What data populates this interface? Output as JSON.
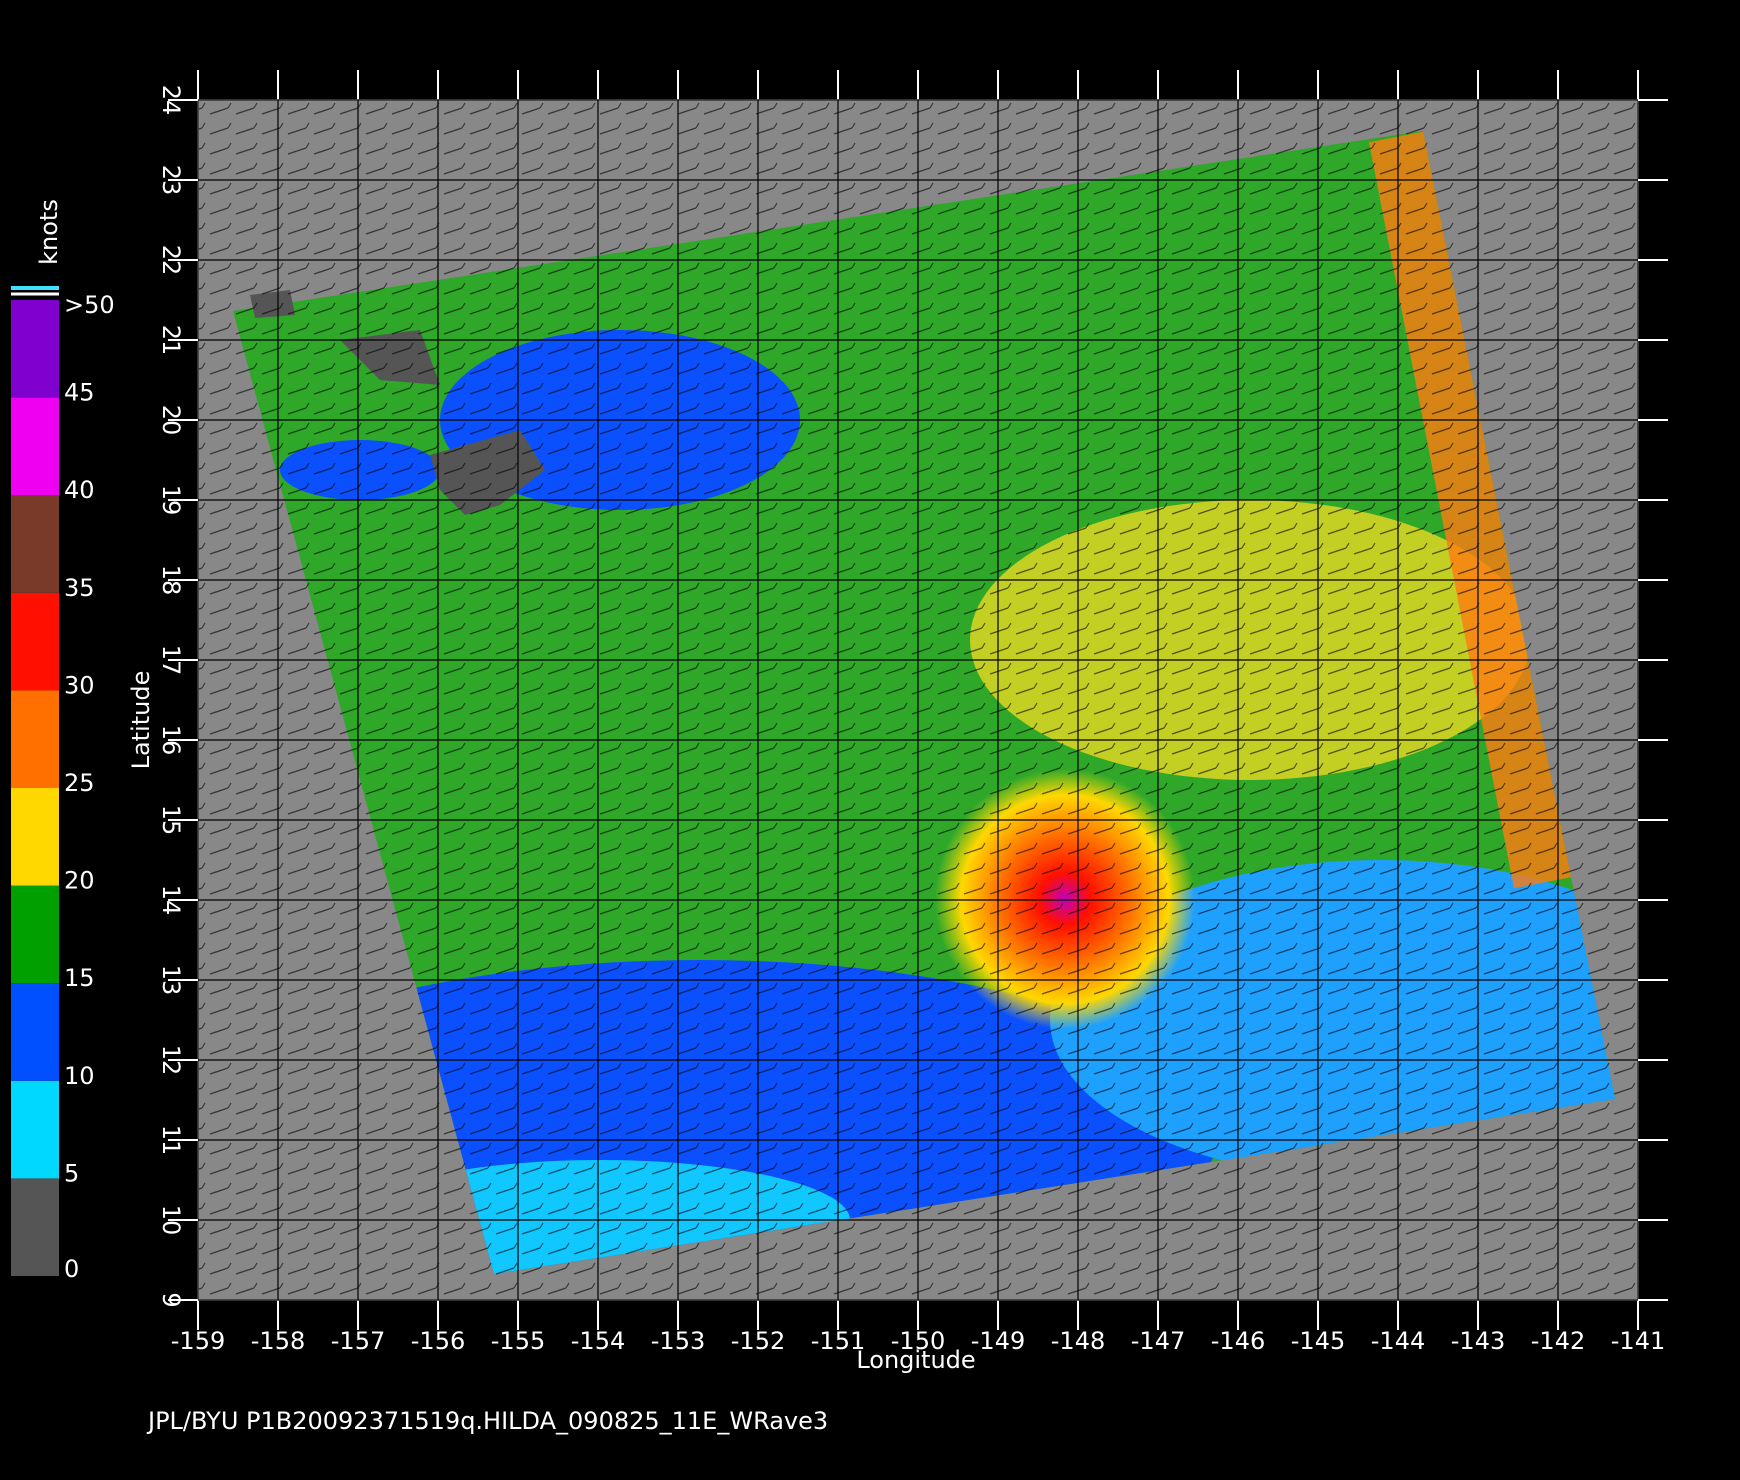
{
  "chart_data": {
    "type": "map",
    "x_label": "Longitude",
    "y_label": "Latitude",
    "xlim": [
      -159,
      -141
    ],
    "ylim": [
      9,
      24
    ],
    "xticks": [
      -159,
      -158,
      -157,
      -156,
      -155,
      -154,
      -153,
      -152,
      -151,
      -150,
      -149,
      -148,
      -147,
      -146,
      -145,
      -144,
      -143,
      -142,
      -141
    ],
    "yticks": [
      9,
      10,
      11,
      12,
      13,
      14,
      15,
      16,
      17,
      18,
      19,
      20,
      21,
      22,
      23,
      24
    ],
    "grid": true,
    "colorbar": {
      "label": "knots",
      "ticks": [
        0,
        5,
        10,
        15,
        20,
        25,
        30,
        35,
        40,
        45,
        {
          "value": 50,
          "label": ">50"
        }
      ],
      "colors": [
        "#555555",
        "#00d8ff",
        "#0050ff",
        "#00a000",
        "#ffd800",
        "#ff7000",
        "#ff1000",
        "#7a3a2a",
        "#f000f0",
        "#8000d0"
      ]
    },
    "footer": "JPL/BYU  P1B20092371519q.HILDA_090825_11E_WRave3"
  }
}
